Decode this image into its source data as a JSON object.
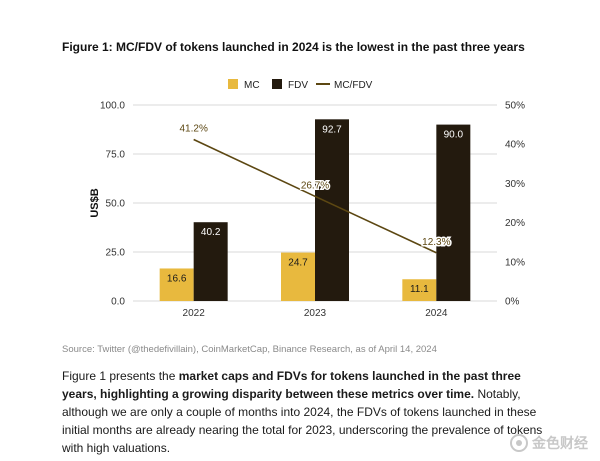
{
  "figure": {
    "title": "Figure 1: MC/FDV of tokens launched in 2024 is the lowest in the past three years",
    "source": "Source: Twitter (@thedefivillain), CoinMarketCap, Binance Research, as of April 14, 2024"
  },
  "paragraph": {
    "p1": "Figure 1 presents the ",
    "b1": "market caps and FDVs for tokens launched in the past three years, highlighting a growing disparity between these metrics over time.",
    "p2": " Notably, although we are only a couple of months into 2024, the FDVs of tokens launched in these initial months are already nearing the total for 2023, underscoring the prevalence of tokens with high valuations."
  },
  "watermark": {
    "text": "金色财经"
  },
  "colors": {
    "mc": "#E8B93E",
    "fdv": "#231A0E",
    "ratio": "#5C4712",
    "grid": "#DADADA",
    "axis_text": "#333333"
  },
  "chart_data": {
    "type": "bar",
    "categories": [
      "2022",
      "2023",
      "2024"
    ],
    "series": [
      {
        "name": "MC",
        "type": "bar",
        "axis": "left",
        "values": [
          16.6,
          24.7,
          11.1
        ],
        "labels": [
          "16.6",
          "24.7",
          "11.1"
        ]
      },
      {
        "name": "FDV",
        "type": "bar",
        "axis": "left",
        "values": [
          40.2,
          92.7,
          90.0
        ],
        "labels": [
          "40.2",
          "92.7",
          "90.0"
        ]
      },
      {
        "name": "MC/FDV",
        "type": "line",
        "axis": "right",
        "values": [
          41.2,
          26.7,
          12.3
        ],
        "labels": [
          "41.2%",
          "26.7%",
          "12.3%"
        ]
      }
    ],
    "ylabel": "US$B",
    "ylim": [
      0,
      100
    ],
    "yticks": [
      "0.0",
      "25.0",
      "50.0",
      "75.0",
      "100.0"
    ],
    "y2lim": [
      0,
      50
    ],
    "y2ticks": [
      "0%",
      "10%",
      "20%",
      "30%",
      "40%",
      "50%"
    ],
    "grid": true,
    "legend": "top-center"
  }
}
